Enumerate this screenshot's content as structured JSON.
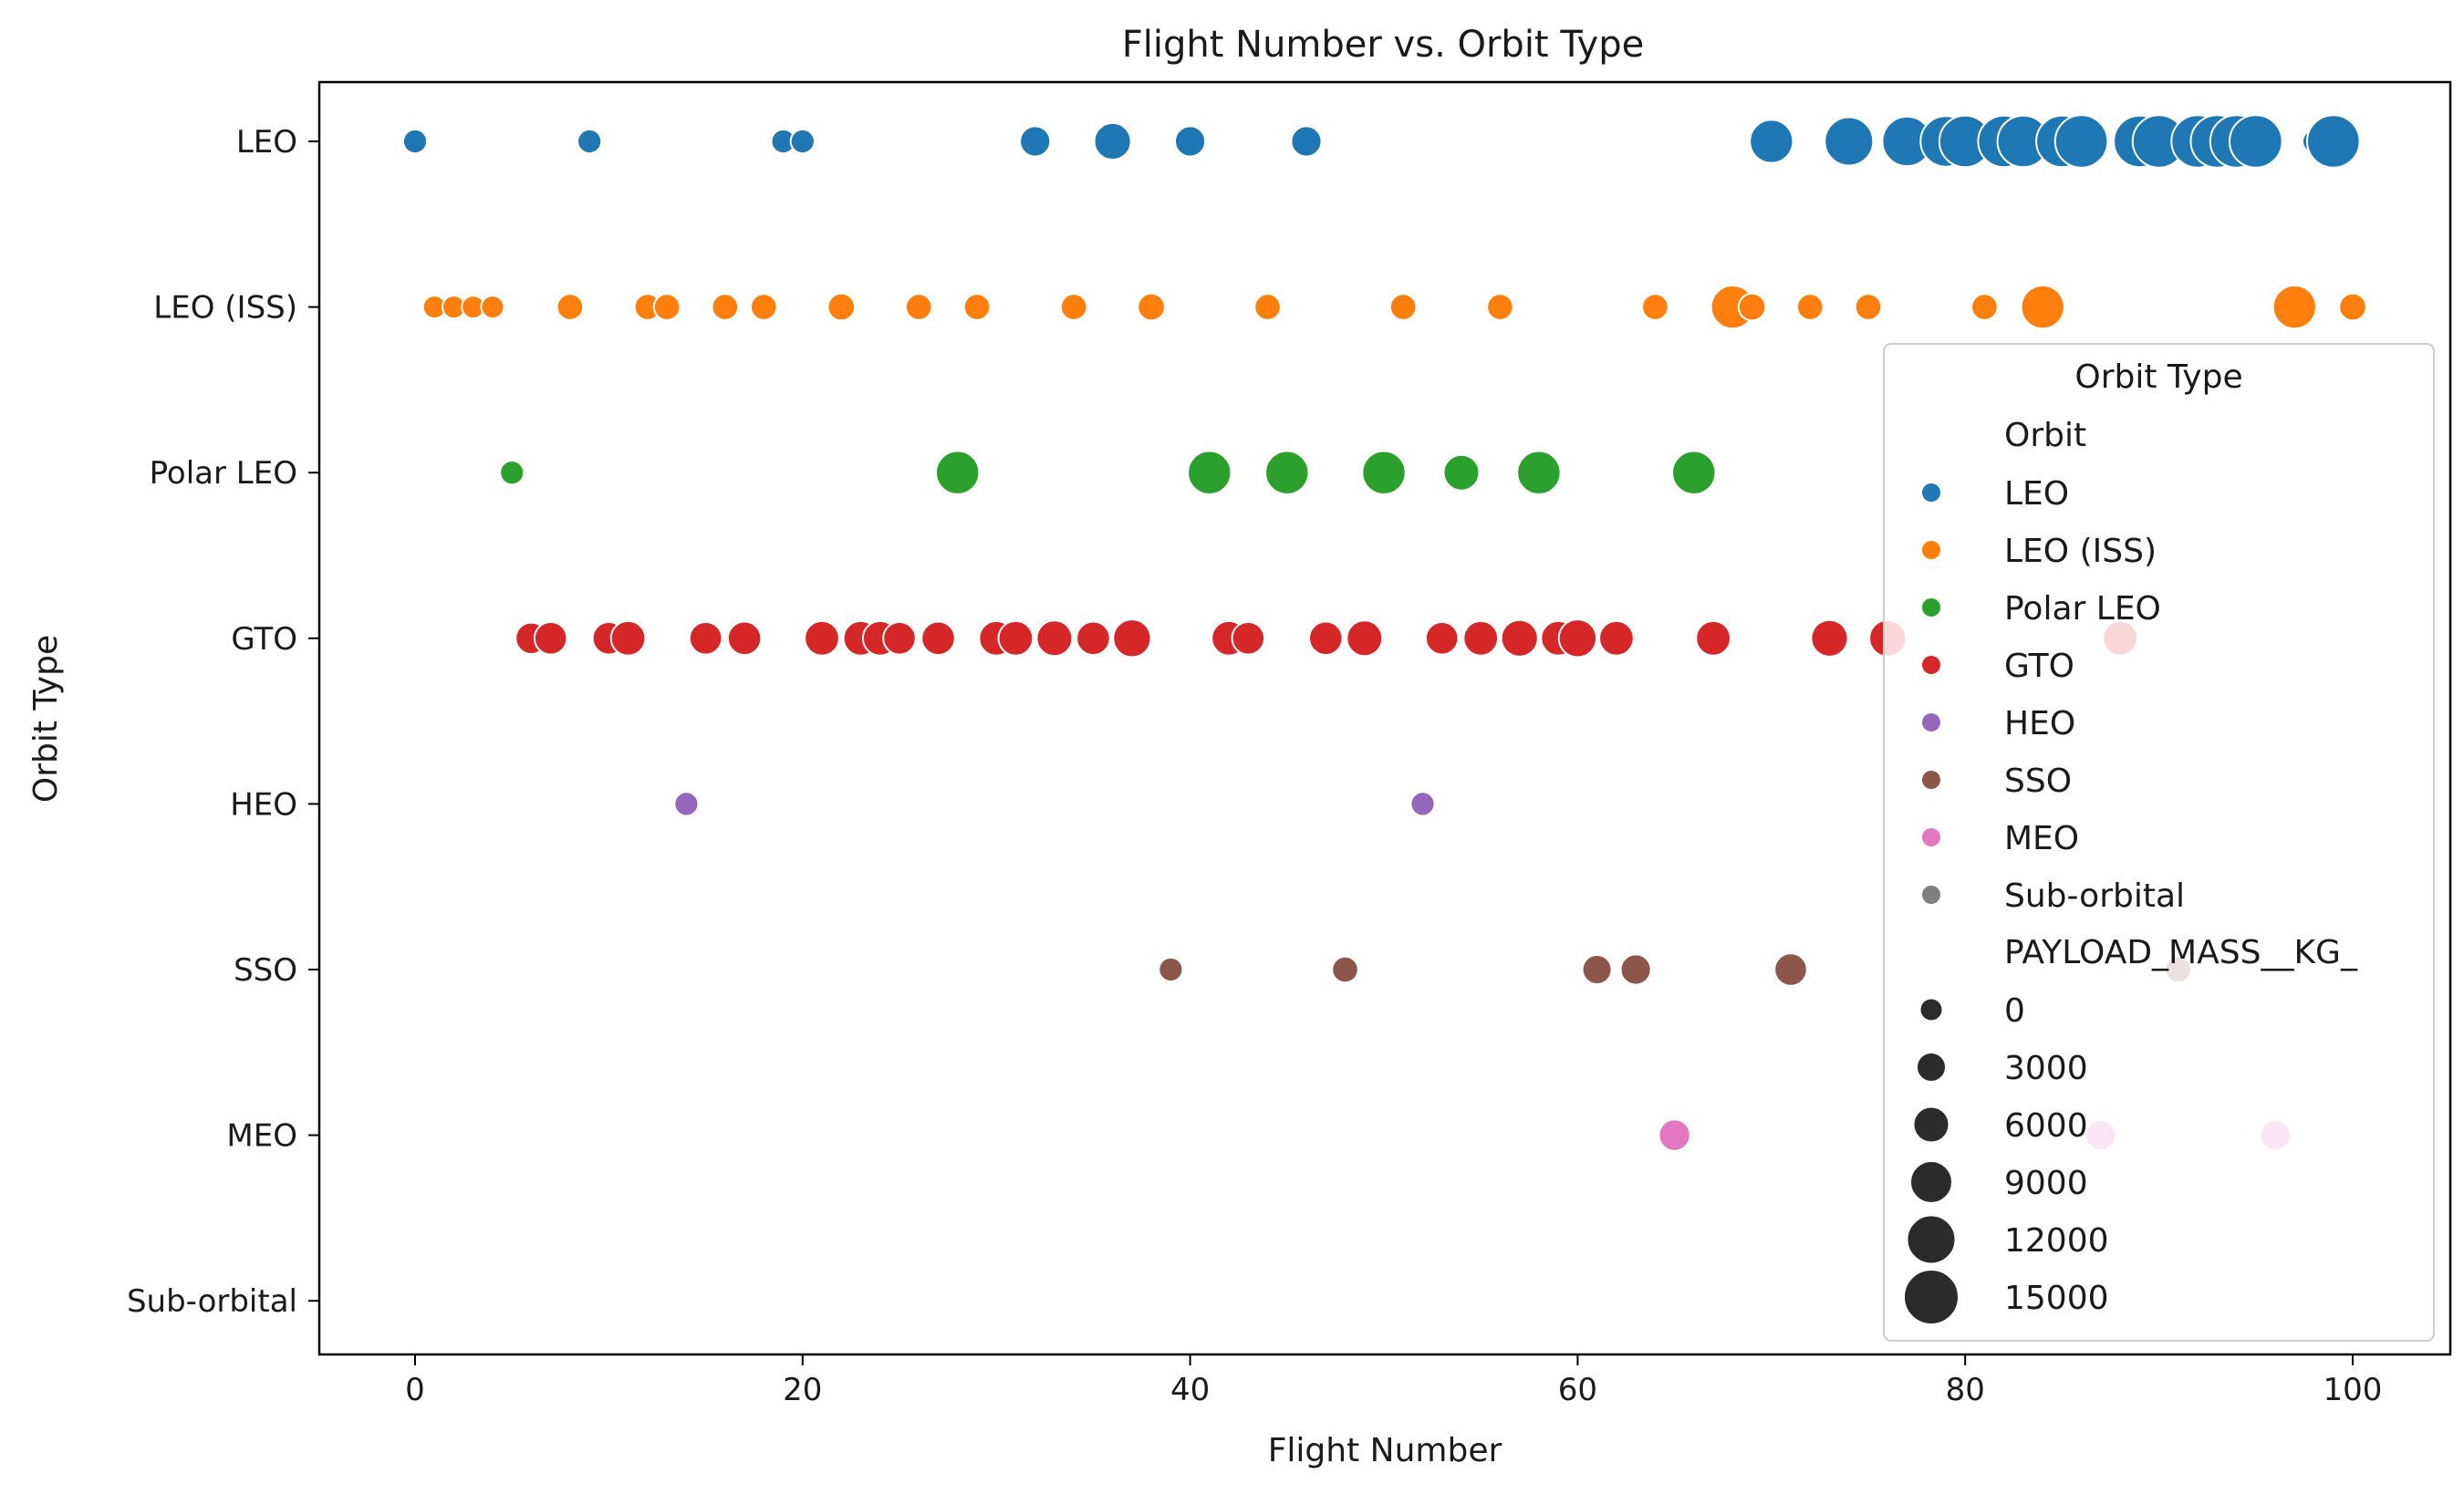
{
  "chart_data": {
    "type": "scatter",
    "title": "Flight Number vs. Orbit Type",
    "xlabel": "Flight Number",
    "ylabel": "Orbit Type",
    "xlim": [
      -5,
      105
    ],
    "xticks": [
      0,
      20,
      40,
      60,
      80,
      100
    ],
    "grid": false,
    "categories": [
      "LEO",
      "LEO (ISS)",
      "Polar LEO",
      "GTO",
      "HEO",
      "SSO",
      "MEO",
      "Sub-orbital"
    ],
    "legend": {
      "title": "Orbit Type",
      "placement": "right",
      "hue_title": "Orbit",
      "size_title": "PAYLOAD_MASS__KG_",
      "size_entries": [
        {
          "label": "0",
          "mass": 0
        },
        {
          "label": "3000",
          "mass": 3000
        },
        {
          "label": "6000",
          "mass": 6000
        },
        {
          "label": "9000",
          "mass": 9000
        },
        {
          "label": "12000",
          "mass": 12000
        },
        {
          "label": "15000",
          "mass": 15000
        }
      ]
    },
    "series": [
      {
        "name": "LEO",
        "color": "#1f77b4",
        "points": [
          [
            0,
            500
          ],
          [
            9,
            500
          ],
          [
            19,
            500
          ],
          [
            20,
            500
          ],
          [
            32,
            3500
          ],
          [
            36,
            6500
          ],
          [
            40,
            3500
          ],
          [
            46,
            3500
          ],
          [
            70,
            9500
          ],
          [
            74,
            12000
          ],
          [
            77,
            12500
          ],
          [
            79,
            13000
          ],
          [
            80,
            13500
          ],
          [
            82,
            13500
          ],
          [
            83,
            13500
          ],
          [
            85,
            13500
          ],
          [
            86,
            14000
          ],
          [
            89,
            13500
          ],
          [
            90,
            14000
          ],
          [
            92,
            14000
          ],
          [
            93,
            14000
          ],
          [
            94,
            14000
          ],
          [
            95,
            14000
          ],
          [
            98,
            0
          ],
          [
            99,
            14000
          ]
        ]
      },
      {
        "name": "LEO (ISS)",
        "color": "#ff7f0e",
        "points": [
          [
            1,
            0
          ],
          [
            2,
            0
          ],
          [
            3,
            0
          ],
          [
            4,
            0
          ],
          [
            8,
            1500
          ],
          [
            12,
            1500
          ],
          [
            13,
            1500
          ],
          [
            16,
            1500
          ],
          [
            18,
            1500
          ],
          [
            22,
            2000
          ],
          [
            26,
            1500
          ],
          [
            29,
            1500
          ],
          [
            34,
            1500
          ],
          [
            38,
            2000
          ],
          [
            44,
            1500
          ],
          [
            51,
            1500
          ],
          [
            56,
            1500
          ],
          [
            64,
            1500
          ],
          [
            68,
            9500
          ],
          [
            69,
            2000
          ],
          [
            72,
            1500
          ],
          [
            75,
            1500
          ],
          [
            81,
            1500
          ],
          [
            84,
            9500
          ],
          [
            97,
            9500
          ],
          [
            100,
            2000
          ]
        ]
      },
      {
        "name": "Polar LEO",
        "color": "#2ca02c",
        "points": [
          [
            5,
            500
          ],
          [
            28,
            9600
          ],
          [
            41,
            9600
          ],
          [
            45,
            9600
          ],
          [
            50,
            9600
          ],
          [
            54,
            6000
          ],
          [
            58,
            9600
          ],
          [
            66,
            9600
          ]
        ]
      },
      {
        "name": "GTO",
        "color": "#d62728",
        "points": [
          [
            6,
            4000
          ],
          [
            7,
            4500
          ],
          [
            10,
            4500
          ],
          [
            11,
            5500
          ],
          [
            15,
            4500
          ],
          [
            17,
            5000
          ],
          [
            21,
            5500
          ],
          [
            23,
            5500
          ],
          [
            24,
            5500
          ],
          [
            25,
            4500
          ],
          [
            27,
            5000
          ],
          [
            30,
            5500
          ],
          [
            31,
            5500
          ],
          [
            33,
            6000
          ],
          [
            35,
            5000
          ],
          [
            37,
            7000
          ],
          [
            42,
            5500
          ],
          [
            43,
            4500
          ],
          [
            47,
            5000
          ],
          [
            49,
            6000
          ],
          [
            53,
            4500
          ],
          [
            55,
            5500
          ],
          [
            57,
            6500
          ],
          [
            59,
            5500
          ],
          [
            60,
            7000
          ],
          [
            62,
            5500
          ],
          [
            67,
            5500
          ],
          [
            73,
            6500
          ],
          [
            76,
            6500
          ],
          [
            88,
            5500
          ]
        ]
      },
      {
        "name": "HEO",
        "color": "#9467bd",
        "points": [
          [
            14,
            500
          ],
          [
            52,
            500
          ]
        ]
      },
      {
        "name": "SSO",
        "color": "#8c564b",
        "points": [
          [
            39,
            500
          ],
          [
            48,
            1500
          ],
          [
            61,
            3000
          ],
          [
            63,
            3500
          ],
          [
            71,
            4500
          ],
          [
            91,
            1500
          ]
        ]
      },
      {
        "name": "MEO",
        "color": "#e377c2",
        "points": [
          [
            65,
            4000
          ],
          [
            87,
            3500
          ],
          [
            96,
            3500
          ]
        ]
      },
      {
        "name": "Sub-orbital",
        "color": "#7f7f7f",
        "points": [
          [
            78,
            0
          ]
        ]
      }
    ]
  }
}
